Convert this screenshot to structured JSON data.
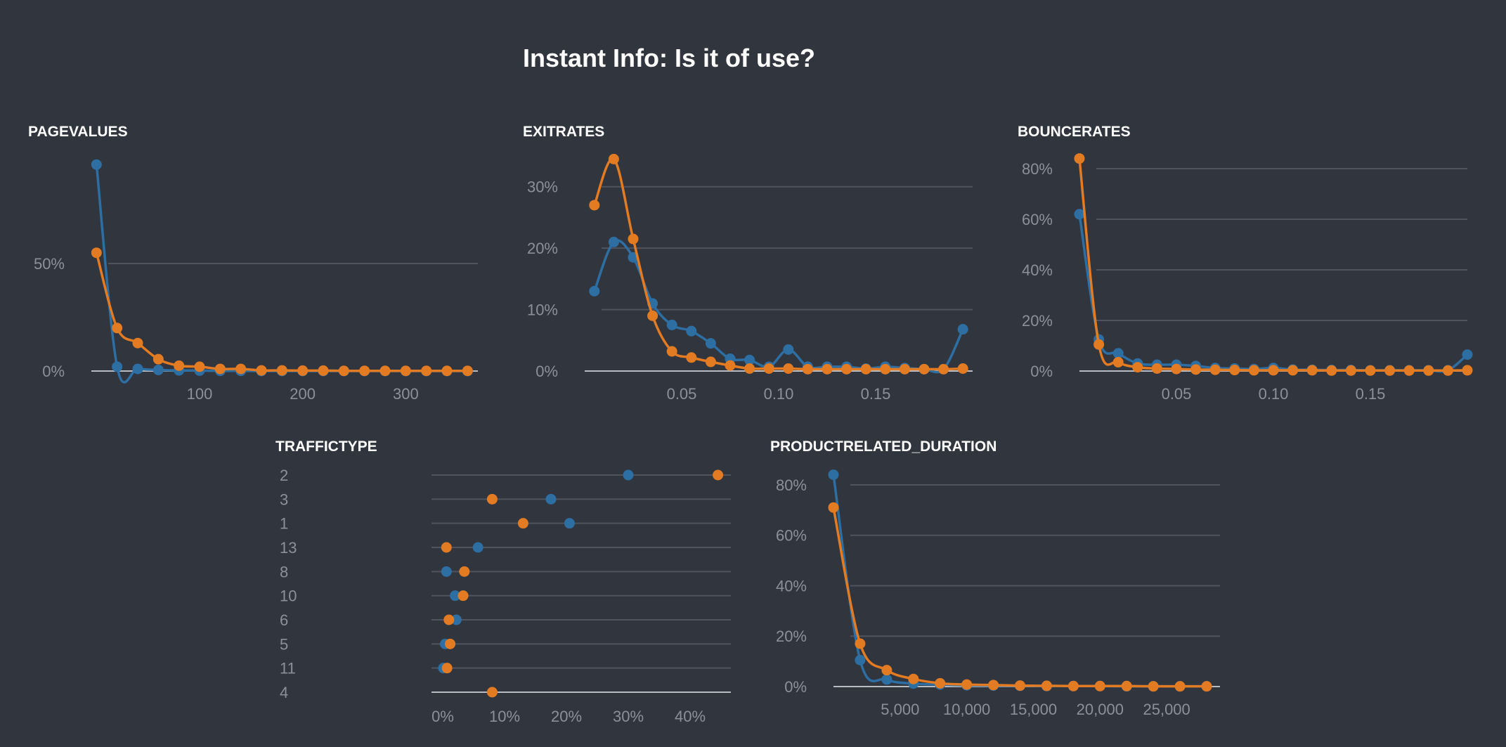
{
  "title": "Instant Info: Is it of use?",
  "colors": {
    "series_a": "#2d6ea3",
    "series_b": "#e37b22",
    "grid": "#4f545e",
    "axis": "#b9bcc2",
    "tick": "#8c9098"
  },
  "chart_data": [
    {
      "id": "pagevalues",
      "title": "PAGEVALUES",
      "type": "line",
      "xlim": [
        -5,
        370
      ],
      "ylim": [
        0,
        1
      ],
      "xticks": [
        100,
        200,
        300
      ],
      "xtick_labels": [
        "100",
        "200",
        "300"
      ],
      "yticks": [
        0,
        0.5
      ],
      "ytick_labels": [
        "0%",
        "50%"
      ],
      "x": [
        0,
        20,
        40,
        60,
        80,
        100,
        120,
        140,
        160,
        180,
        200,
        220,
        240,
        260,
        280,
        300,
        320,
        340,
        360
      ],
      "series": [
        {
          "values": [
            0.96,
            0.02,
            0.01,
            0.005,
            0.003,
            0.002,
            0.001,
            0.001,
            0,
            0,
            0,
            0,
            0,
            0,
            0,
            0,
            0,
            0,
            0
          ]
        },
        {
          "values": [
            0.55,
            0.2,
            0.13,
            0.055,
            0.025,
            0.02,
            0.01,
            0.01,
            0.003,
            0.003,
            0.002,
            0.002,
            0.001,
            0.001,
            0.001,
            0.001,
            0.001,
            0.001,
            0.001
          ]
        }
      ]
    },
    {
      "id": "exitrates",
      "title": "EXITRATES",
      "type": "line",
      "xlim": [
        0,
        0.2
      ],
      "ylim": [
        0,
        0.35
      ],
      "xticks": [
        0.05,
        0.1,
        0.15
      ],
      "xtick_labels": [
        "0.05",
        "0.10",
        "0.15"
      ],
      "yticks": [
        0,
        0.1,
        0.2,
        0.3
      ],
      "ytick_labels": [
        "0%",
        "10%",
        "20%",
        "30%"
      ],
      "x": [
        0.005,
        0.015,
        0.025,
        0.035,
        0.045,
        0.055,
        0.065,
        0.075,
        0.085,
        0.095,
        0.105,
        0.115,
        0.125,
        0.135,
        0.145,
        0.155,
        0.165,
        0.175,
        0.185,
        0.195
      ],
      "series": [
        {
          "values": [
            0.13,
            0.21,
            0.185,
            0.11,
            0.075,
            0.065,
            0.045,
            0.02,
            0.018,
            0.007,
            0.035,
            0.007,
            0.007,
            0.007,
            0.004,
            0.007,
            0.005,
            0.003,
            0.003,
            0.068
          ]
        },
        {
          "values": [
            0.27,
            0.345,
            0.215,
            0.09,
            0.032,
            0.022,
            0.015,
            0.009,
            0.004,
            0.004,
            0.004,
            0.003,
            0.003,
            0.003,
            0.003,
            0.003,
            0.003,
            0.003,
            0.003,
            0.004
          ]
        }
      ]
    },
    {
      "id": "bouncerates",
      "title": "BOUNCERATES",
      "type": "line",
      "xlim": [
        0,
        0.2
      ],
      "ylim": [
        0,
        0.85
      ],
      "xticks": [
        0.05,
        0.1,
        0.15
      ],
      "xtick_labels": [
        "0.05",
        "0.10",
        "0.15"
      ],
      "yticks": [
        0,
        0.2,
        0.4,
        0.6,
        0.8
      ],
      "ytick_labels": [
        "0%",
        "20%",
        "40%",
        "60%",
        "80%"
      ],
      "x": [
        0.0,
        0.01,
        0.02,
        0.03,
        0.04,
        0.05,
        0.06,
        0.07,
        0.08,
        0.09,
        0.1,
        0.11,
        0.12,
        0.13,
        0.14,
        0.15,
        0.16,
        0.17,
        0.18,
        0.19,
        0.2
      ],
      "series": [
        {
          "values": [
            0.62,
            0.125,
            0.07,
            0.03,
            0.025,
            0.025,
            0.02,
            0.012,
            0.01,
            0.008,
            0.012,
            0.006,
            0.005,
            0.004,
            0.004,
            0.003,
            0.003,
            0.003,
            0.003,
            0.003,
            0.065
          ]
        },
        {
          "values": [
            0.84,
            0.105,
            0.035,
            0.015,
            0.01,
            0.008,
            0.006,
            0.005,
            0.004,
            0.003,
            0.003,
            0.003,
            0.003,
            0.002,
            0.002,
            0.002,
            0.002,
            0.002,
            0.002,
            0.002,
            0.003
          ]
        }
      ]
    },
    {
      "id": "traffictype",
      "title": "TRAFFICTYPE",
      "type": "dot",
      "categories": [
        "2",
        "3",
        "1",
        "13",
        "8",
        "10",
        "6",
        "5",
        "11",
        "4"
      ],
      "xlim": [
        0,
        0.45
      ],
      "xticks": [
        0,
        0.1,
        0.2,
        0.3,
        0.4
      ],
      "xtick_labels": [
        "0%",
        "10%",
        "20%",
        "30%",
        "40%"
      ],
      "series": [
        {
          "values": [
            0.3,
            0.175,
            0.205,
            0.057,
            0.006,
            0.02,
            0.022,
            0.004,
            0.001,
            null
          ]
        },
        {
          "values": [
            0.445,
            0.08,
            0.13,
            0.006,
            0.035,
            0.033,
            0.01,
            0.012,
            0.007,
            0.08
          ]
        }
      ]
    },
    {
      "id": "productrelated_duration",
      "title": "PRODUCTRELATED_DURATION",
      "type": "line",
      "xlim": [
        0,
        29000
      ],
      "ylim": [
        0,
        0.85
      ],
      "xticks": [
        5000,
        10000,
        15000,
        20000,
        25000
      ],
      "xtick_labels": [
        "5,000",
        "10,000",
        "15,000",
        "20,000",
        "25,000"
      ],
      "yticks": [
        0,
        0.2,
        0.4,
        0.6,
        0.8
      ],
      "ytick_labels": [
        "0%",
        "20%",
        "40%",
        "60%",
        "80%"
      ],
      "x": [
        0,
        2000,
        4000,
        6000,
        8000,
        10000,
        12000,
        14000,
        16000,
        18000,
        20000,
        22000,
        24000,
        26000,
        28000
      ],
      "series": [
        {
          "values": [
            0.84,
            0.105,
            0.028,
            0.012,
            0.008,
            0.005,
            0.004,
            0.003,
            0.002,
            0.002,
            0.002,
            0.001,
            0.001,
            0.001,
            0.001
          ]
        },
        {
          "values": [
            0.71,
            0.17,
            0.065,
            0.03,
            0.013,
            0.008,
            0.006,
            0.004,
            0.003,
            0.002,
            0.002,
            0.002,
            0.001,
            0.001,
            0.001
          ]
        }
      ]
    }
  ]
}
